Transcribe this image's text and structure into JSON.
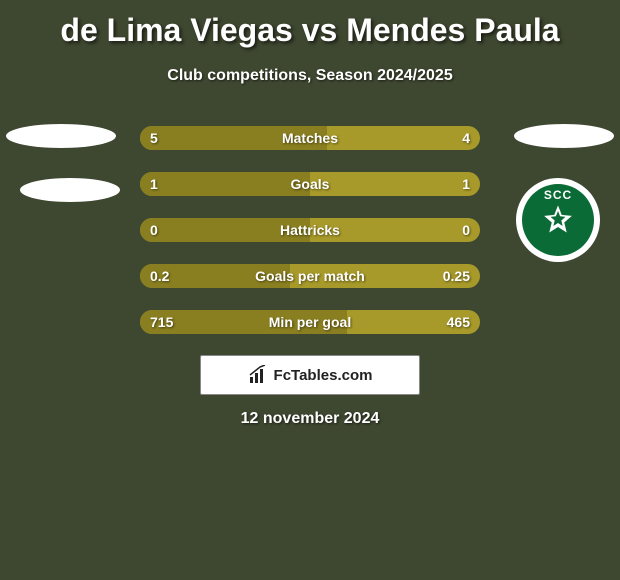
{
  "title": "de Lima Viegas vs Mendes Paula",
  "subtitle": "Club competitions, Season 2024/2025",
  "date": "12 november 2024",
  "footer_brand": "FcTables.com",
  "background_color": "#3e4730",
  "badge": {
    "text": "SCC",
    "bg": "#0b6b36",
    "ring": "#ffffff",
    "star_fill": "#ffffff",
    "star_inner": "#0b6b36"
  },
  "bars": {
    "base_color": "#a89a2a",
    "fill_color": "#8a7f20",
    "text_color": "#ffffff",
    "rows": [
      {
        "label": "Matches",
        "left": "5",
        "right": "4",
        "left_pct": 55
      },
      {
        "label": "Goals",
        "left": "1",
        "right": "1",
        "left_pct": 50
      },
      {
        "label": "Hattricks",
        "left": "0",
        "right": "0",
        "left_pct": 50
      },
      {
        "label": "Goals per match",
        "left": "0.2",
        "right": "0.25",
        "left_pct": 44
      },
      {
        "label": "Min per goal",
        "left": "715",
        "right": "465",
        "left_pct": 61
      }
    ]
  }
}
